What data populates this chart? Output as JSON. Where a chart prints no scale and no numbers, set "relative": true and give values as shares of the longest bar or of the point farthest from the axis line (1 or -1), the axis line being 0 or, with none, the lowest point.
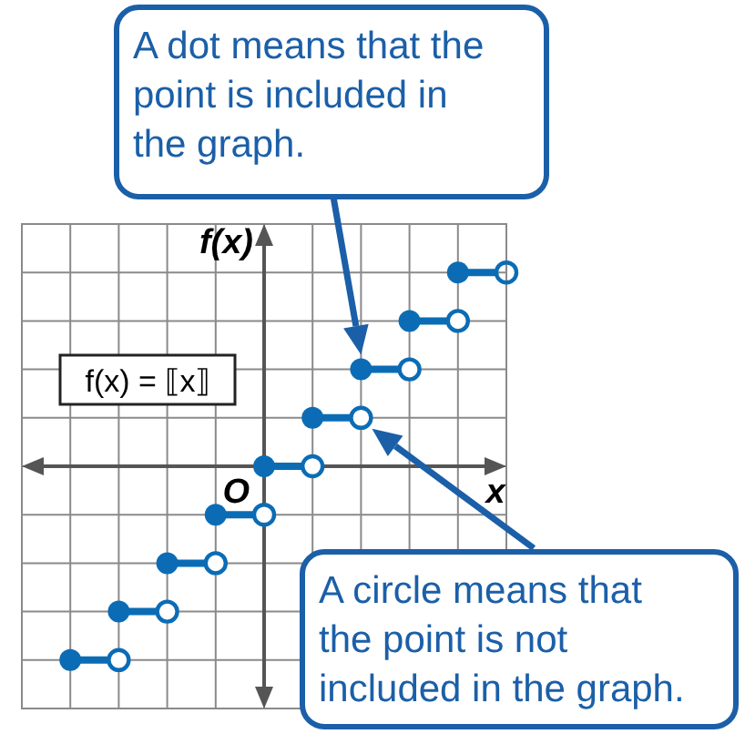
{
  "chart_data": {
    "type": "step",
    "relative": true,
    "xlabel": "x",
    "ylabel": "f(x)",
    "categories": [
      null,
      null,
      null,
      null,
      null,
      null,
      null,
      null,
      null,
      null,
      null
    ],
    "grid": true,
    "marker": "circle",
    "color": "#0b6cb5",
    "values": [
      null,
      -1,
      -0.75,
      -0.5,
      -0.25,
      0,
      0.25,
      0.5,
      0.75,
      1,
      1
    ],
    "annotations": [
      "A dot means that the\npoint is included in\nthe graph.",
      "A circle means that\nthe point is not\nincluded in the graph.",
      "f(x) = ⟦x⟧",
      "O"
    ]
  }
}
